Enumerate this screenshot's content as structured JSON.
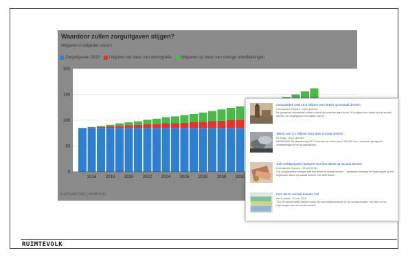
{
  "chart_data": {
    "type": "bar",
    "title": "Waardoor zullen zorguitgaven stijgen?",
    "subtitle": "Uitgaven in miljarden euro's",
    "ylim": [
      0,
      200
    ],
    "yticks": [
      0,
      50,
      100,
      150,
      200
    ],
    "xtick_labels": [
      "2016",
      "2018",
      "2020",
      "2022",
      "2024",
      "2026",
      "2028",
      "2030",
      "2032",
      "2034",
      "2036",
      "2038",
      "2040"
    ],
    "categories": [
      2015,
      2016,
      2017,
      2018,
      2019,
      2020,
      2021,
      2022,
      2023,
      2024,
      2025,
      2026,
      2027,
      2028,
      2029,
      2030,
      2031,
      2032,
      2033,
      2034,
      2035,
      2036,
      2037,
      2038,
      2039,
      2040
    ],
    "series": [
      {
        "name": "Zorguitgaven 2015",
        "color": "#2f7fd0",
        "values": [
          85,
          85,
          85,
          85,
          85,
          85,
          85,
          85,
          85,
          85,
          85,
          85,
          85,
          85,
          85,
          85,
          85,
          85,
          85,
          85,
          85,
          85,
          85,
          85,
          85,
          85
        ]
      },
      {
        "name": "Uitgaven op basis van demografie",
        "color": "#e6322b",
        "values": [
          0,
          1,
          2,
          3,
          4,
          5,
          6,
          7,
          8,
          9,
          9.5,
          10,
          11,
          12,
          13,
          14,
          15,
          16,
          17,
          18,
          19,
          20,
          21,
          22,
          23,
          24
        ]
      },
      {
        "name": "Uitgaven op basis van overige ontwikkelingen",
        "color": "#49b948",
        "values": [
          0,
          1,
          2,
          3,
          5,
          6,
          7,
          9,
          10,
          12,
          13,
          15,
          16,
          18,
          20,
          22,
          24,
          26,
          28,
          30,
          33,
          36,
          39,
          43,
          48,
          53
        ]
      }
    ],
    "footer": "Gemaakt met Localfocus"
  },
  "search_results": [
    {
      "title": "Leeuwarden kost 19,8 miljoen euro tekort op sociaal domein",
      "meta": "Leeuwarder Courant - 3 jun geleden",
      "snippet": "De gemeente Leeuwarden schat in dat zij de komende jaren tekort 19,8 miljoen euro tekort op het sociaal domein. De zorguitgaven met haken, zijn de ..."
    },
    {
      "title": "Tekort van 3,1 miljoen euro door sociaal domein",
      "meta": "De Kaap - 6 jun geleden",
      "snippet": "HEERLINGE De jaarrekening 2017 sluit met een tekort van 3.100.000 euro, vooral als gevolg van ontwikkelingen in het sociaal domein."
    },
    {
      "title": "Ook Achtkarspelen kampen met fors tekort op sociaal domein",
      "meta": "Leeuwarder Courant - 26 mei 2018",
      "snippet": "Ook Achtkarspelen kampen met fors tekort op sociaal domein ... gemeente kenbaag het tegenvalgen op het ongeboden tekort op sociaal domein. Het weer tekort ..."
    },
    {
      "title": "Fors tekort sociaal domein Tiel",
      "meta": "Het Kontakt - 22 mei 2018",
      "snippet": "TIEL Zin gemeentelijk aandeel sinds het door miljoenentekort op het sociaal domein. Het klam om de tegenslagen met het sociaal domein."
    }
  ],
  "brand": "RUIMTEVOLK"
}
